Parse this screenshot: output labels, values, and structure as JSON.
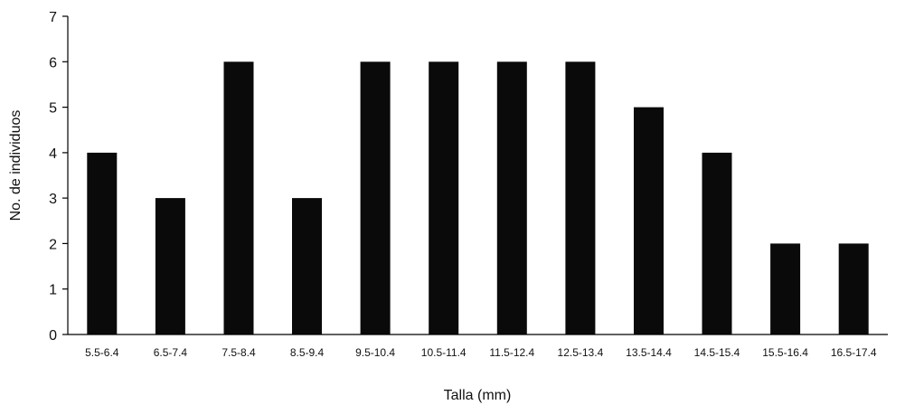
{
  "chart_data": {
    "type": "bar",
    "title": "",
    "xlabel": "Talla (mm)",
    "ylabel": "No. de individuos",
    "ylim": [
      0,
      7
    ],
    "yticks": [
      0,
      1,
      2,
      3,
      4,
      5,
      6,
      7
    ],
    "grid": false,
    "bar_color": "#0a0a0a",
    "categories": [
      "5.5-6.4",
      "6.5-7.4",
      "7.5-8.4",
      "8.5-9.4",
      "9.5-10.4",
      "10.5-11.4",
      "11.5-12.4",
      "12.5-13.4",
      "13.5-14.4",
      "14.5-15.4",
      "15.5-16.4",
      "16.5-17.4"
    ],
    "values": [
      4,
      3,
      6,
      3,
      6,
      6,
      6,
      6,
      5,
      4,
      2,
      2
    ]
  }
}
